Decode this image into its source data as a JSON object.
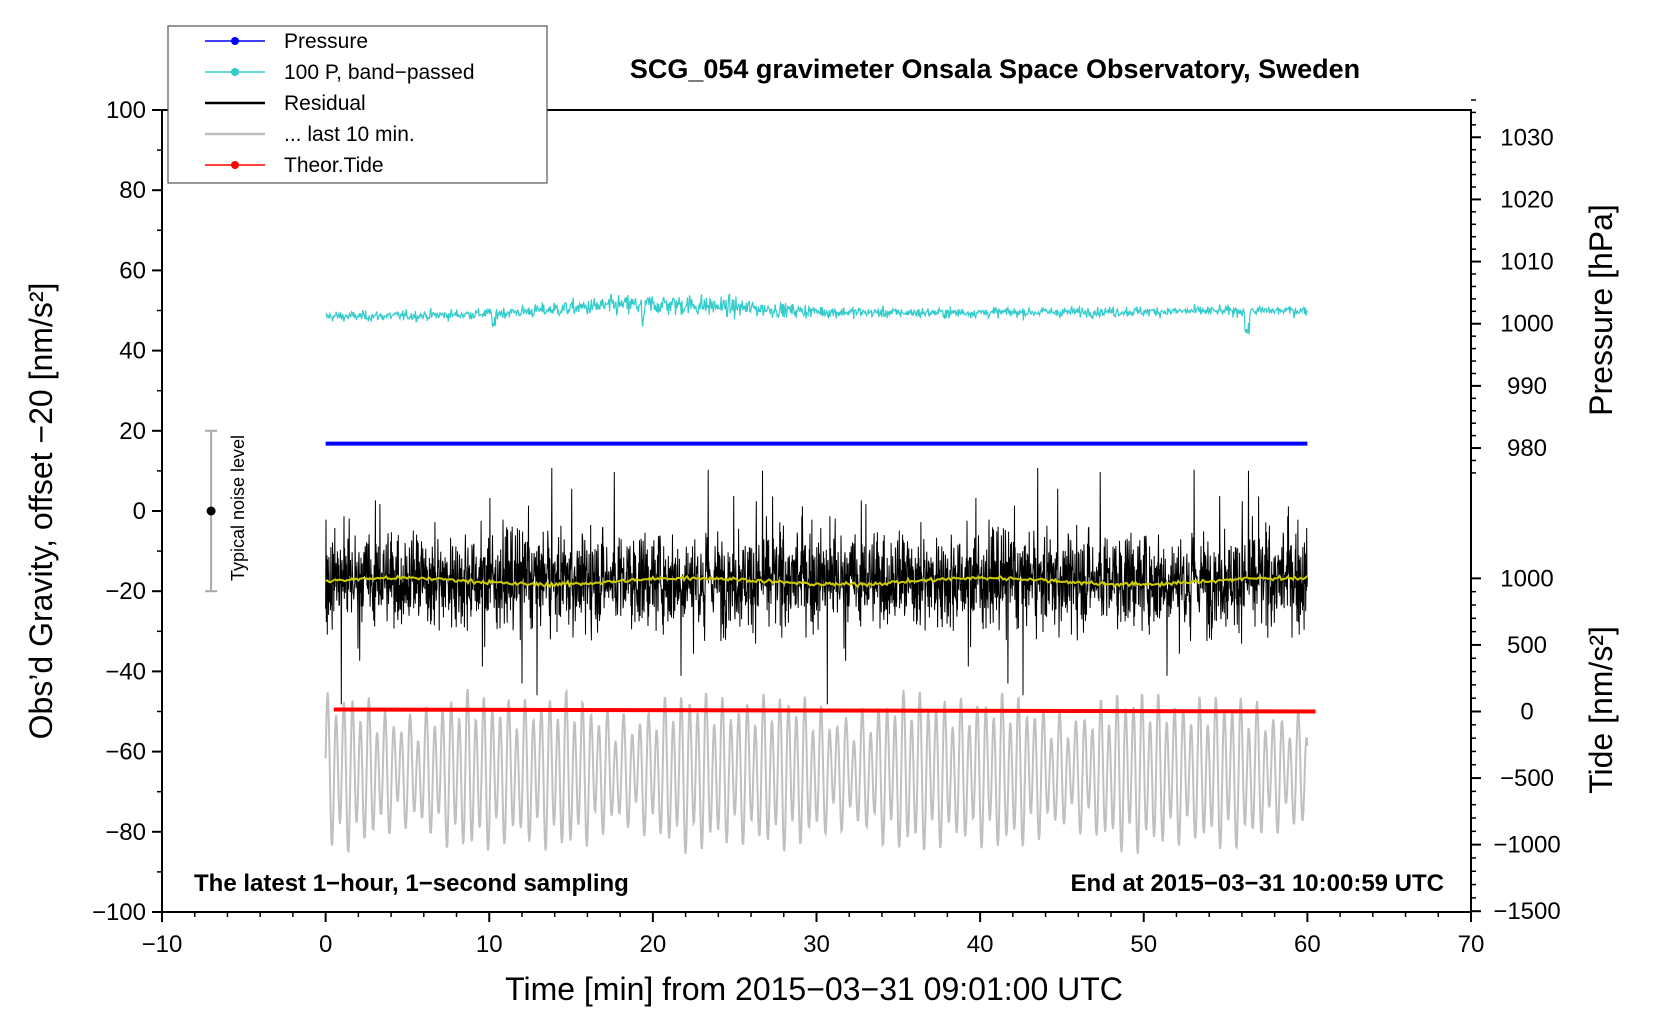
{
  "chart_data": {
    "type": "line",
    "title": "SCG_054 gravimeter Onsala Space Observatory, Sweden",
    "xlabel": "Time [min] from 2015−03−31 09:01:00 UTC",
    "ylabel_left": "Obs’d Gravity, offset −20 [nm/s²]",
    "ylabel_right_pressure": "Pressure [hPa]",
    "ylabel_right_tide": "Tide [nm/s²]",
    "xlim": [
      -10,
      70
    ],
    "ylim_left": [
      -100,
      100
    ],
    "pressure_axis": {
      "ticks": [
        980,
        990,
        1000,
        1010,
        1020,
        1030
      ],
      "tick_labels": [
        "980",
        "990",
        "1000",
        "1010",
        "1020",
        "1030"
      ]
    },
    "tide_axis": {
      "ticks": [
        -1500,
        -1000,
        -500,
        0,
        500,
        1000
      ],
      "tick_labels": [
        "−1500",
        "−1000",
        "−500",
        "0",
        "500",
        "1000"
      ]
    },
    "x_ticks": [
      -10,
      0,
      10,
      20,
      30,
      40,
      50,
      60,
      70
    ],
    "x_tick_labels": [
      "−10",
      "0",
      "10",
      "20",
      "30",
      "40",
      "50",
      "60",
      "70"
    ],
    "y_ticks": [
      -100,
      -80,
      -60,
      -40,
      -20,
      0,
      20,
      40,
      60,
      80,
      100
    ],
    "y_tick_labels": [
      "−100",
      "−80",
      "−60",
      "−40",
      "−20",
      "0",
      "20",
      "40",
      "60",
      "80",
      "100"
    ],
    "series": [
      {
        "name": "Pressure",
        "color": "#0000ff",
        "x_range": [
          0,
          60
        ],
        "level": 16.8,
        "description_unit": "nm/s2 plotted position"
      },
      {
        "name": "100 P, band−passed",
        "color": "#33cccc",
        "x_range": [
          0,
          60
        ],
        "mean": 50,
        "amplitude": 3
      },
      {
        "name": "Residual",
        "color": "#000000",
        "x_range": [
          0,
          60
        ],
        "mean": -17,
        "amplitude": 16
      },
      {
        "name": "... last 10 min.",
        "color": "#c0c0c0",
        "x_range": [
          0,
          60
        ],
        "mean": -65,
        "amplitude": 13
      },
      {
        "name": "Theor.Tide",
        "color": "#ff0000",
        "x_range": [
          0.5,
          60.5
        ],
        "start": -49.5,
        "end": -50
      }
    ],
    "residual_smooth": {
      "color": "#cccc00",
      "mean": -17.5
    },
    "noise_bar": {
      "label": "Typical noise level",
      "x": -7,
      "center": 0,
      "half_range": 20
    },
    "annotations": {
      "left": "The latest 1−hour, 1−second sampling",
      "right": "End at 2015−03−31 10:00:59 UTC"
    }
  }
}
